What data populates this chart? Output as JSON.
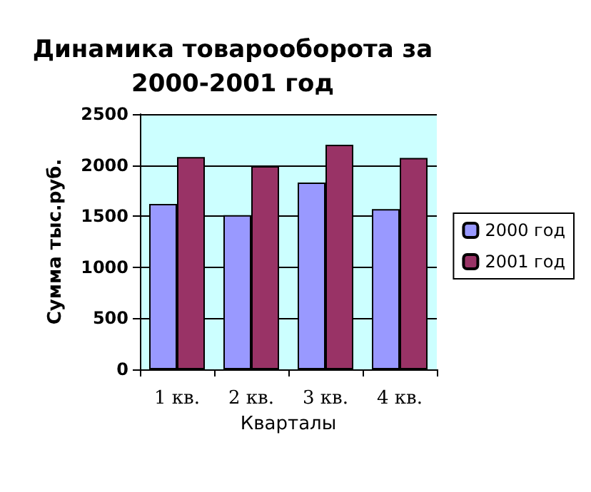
{
  "chart_data": {
    "type": "bar",
    "title": "Динамика товарооборота за\n2000-2001 год",
    "xlabel": "Кварталы",
    "ylabel": "Сумма тыс.руб.",
    "categories": [
      "1 кв.",
      "2 кв.",
      "3 кв.",
      "4 кв."
    ],
    "series": [
      {
        "name": "2000 год",
        "color": "#9999ff",
        "values": [
          1620,
          1510,
          1830,
          1570
        ]
      },
      {
        "name": "2001 год",
        "color": "#993366",
        "values": [
          2080,
          1990,
          2200,
          2070
        ]
      }
    ],
    "ylim": [
      0,
      2500
    ],
    "yticks": [
      0,
      500,
      1000,
      1500,
      2000,
      2500
    ],
    "grid": "y",
    "legend": "right"
  }
}
